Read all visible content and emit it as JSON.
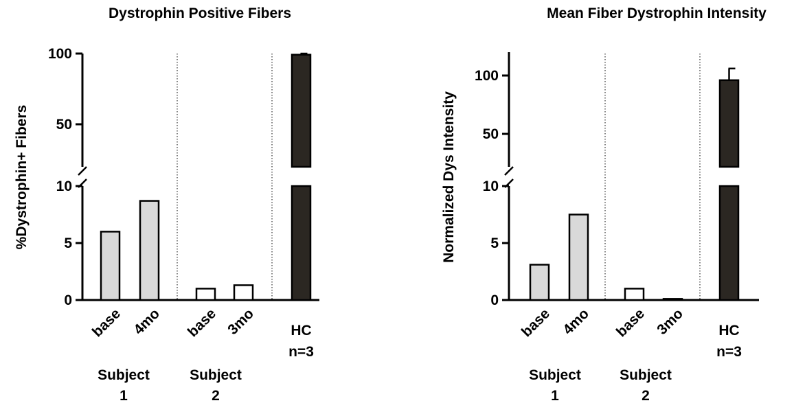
{
  "chart_data": [
    {
      "type": "bar",
      "title": "Dystrophin Positive Fibers",
      "ylabel": "%Dystrophin+ Fibers",
      "xlabel": "",
      "axis_break": {
        "lower_range": [
          0,
          10
        ],
        "upper_range": [
          20,
          100
        ]
      },
      "yticks_lower": [
        "0",
        "5",
        "10"
      ],
      "yticks_upper": [
        "50",
        "100"
      ],
      "categories": [
        "base",
        "4mo",
        "base",
        "3mo",
        "HC\nn=3"
      ],
      "values": [
        6.0,
        8.7,
        1.0,
        1.3,
        99.2
      ],
      "error": [
        null,
        null,
        null,
        null,
        0.8
      ],
      "bar_colors": [
        "#d9d9d9",
        "#d9d9d9",
        "#ffffff",
        "#ffffff",
        "#2b2722"
      ],
      "groups": [
        {
          "label_line1": "Subject",
          "label_line2": "1"
        },
        {
          "label_line1": "Subject",
          "label_line2": "2"
        }
      ],
      "hc_label_line1": "HC",
      "hc_label_line2": "n=3"
    },
    {
      "type": "bar",
      "title": "Mean Fiber Dystrophin Intensity",
      "ylabel": "Normalized Dys Intensity",
      "xlabel": "",
      "axis_break": {
        "lower_range": [
          0,
          10
        ],
        "upper_range": [
          20,
          120
        ]
      },
      "yticks_lower": [
        "0",
        "5",
        "10"
      ],
      "yticks_upper": [
        "50",
        "100"
      ],
      "categories": [
        "base",
        "4mo",
        "base",
        "3mo",
        "HC\nn=3"
      ],
      "values": [
        3.1,
        7.5,
        1.0,
        0.1,
        96
      ],
      "error": [
        null,
        null,
        null,
        null,
        10
      ],
      "bar_colors": [
        "#d9d9d9",
        "#d9d9d9",
        "#ffffff",
        "#ffffff",
        "#2b2722"
      ],
      "groups": [
        {
          "label_line1": "Subject",
          "label_line2": "1"
        },
        {
          "label_line1": "Subject",
          "label_line2": "2"
        }
      ],
      "hc_label_line1": "HC",
      "hc_label_line2": "n=3"
    }
  ]
}
